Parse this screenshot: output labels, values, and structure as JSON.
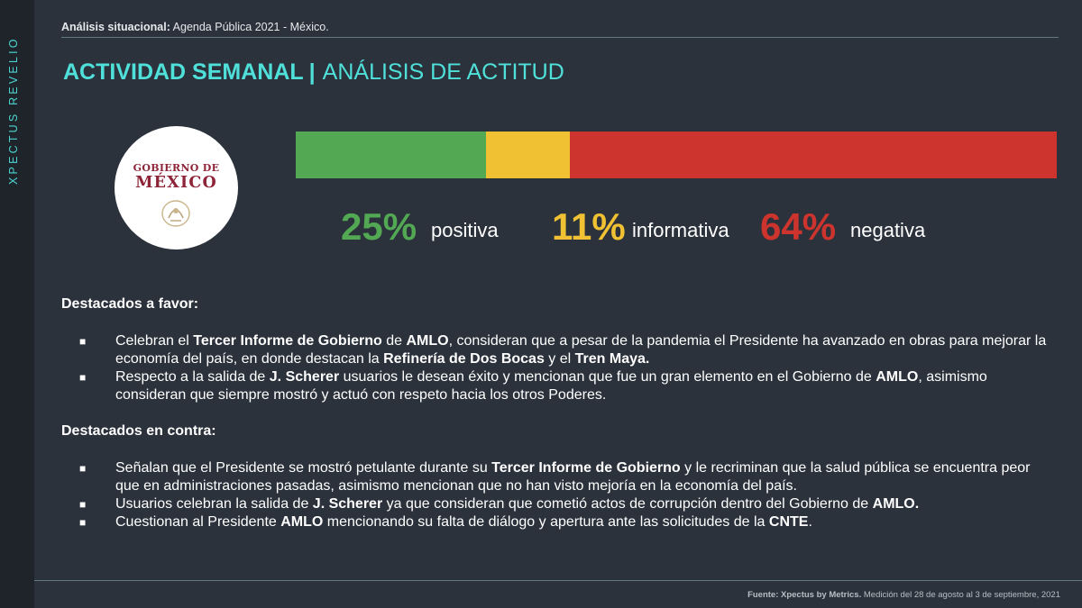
{
  "sidebar": {
    "text": "XPECTUS REVELIO"
  },
  "header": {
    "label_bold": "Análisis situacional:",
    "label_rest": " Agenda Pública 2021 - México."
  },
  "title": {
    "main": "ACTIVIDAD SEMANAL",
    "separator": "|",
    "sub": "ANÁLISIS DE ACTITUD"
  },
  "logo": {
    "line1": "GOBIERNO DE",
    "line2": "MÉXICO"
  },
  "attitude": {
    "segments": [
      {
        "label": "positiva",
        "pct_text": "25%",
        "value": 25,
        "color": "#52a853"
      },
      {
        "label": "informativa",
        "pct_text": "11%",
        "value": 11,
        "color": "#f0c132"
      },
      {
        "label": "negativa",
        "pct_text": "64%",
        "value": 64,
        "color": "#cd342d"
      }
    ]
  },
  "favor": {
    "heading": "Destacados a favor:",
    "items": [
      [
        {
          "t": "Celebran el "
        },
        {
          "t": "Tercer Informe de Gobierno",
          "b": true
        },
        {
          "t": " de "
        },
        {
          "t": "AMLO",
          "b": true
        },
        {
          "t": ", consideran que a pesar de la pandemia el Presidente ha avanzado en obras para mejorar la economía del país, en donde destacan la "
        },
        {
          "t": "Refinería de Dos Bocas",
          "b": true
        },
        {
          "t": " y el "
        },
        {
          "t": "Tren Maya.",
          "b": true
        }
      ],
      [
        {
          "t": "Respecto a la salida de "
        },
        {
          "t": "J. Scherer",
          "b": true
        },
        {
          "t": " usuarios le desean éxito y mencionan que fue un gran elemento en el Gobierno de "
        },
        {
          "t": "AMLO",
          "b": true
        },
        {
          "t": ", asimismo consideran que siempre mostró y actuó con respeto hacia los otros Poderes."
        }
      ]
    ]
  },
  "contra": {
    "heading": "Destacados en contra:",
    "items": [
      [
        {
          "t": "Señalan que el Presidente se mostró petulante durante su "
        },
        {
          "t": "Tercer Informe de Gobierno",
          "b": true
        },
        {
          "t": " y le recriminan que la salud pública se encuentra peor que en administraciones pasadas, asimismo mencionan que no han visto mejoría en la economía del país."
        }
      ],
      [
        {
          "t": "Usuarios celebran la salida de "
        },
        {
          "t": "J. Scherer",
          "b": true
        },
        {
          "t": " ya que consideran que cometió actos de corrupción dentro del Gobierno de "
        },
        {
          "t": "AMLO.",
          "b": true
        }
      ],
      [
        {
          "t": "Cuestionan al Presidente "
        },
        {
          "t": "AMLO",
          "b": true
        },
        {
          "t": " mencionando su falta de diálogo y apertura ante las solicitudes de la "
        },
        {
          "t": "CNTE",
          "b": true
        },
        {
          "t": "."
        }
      ]
    ]
  },
  "bullet_glyph": "■",
  "footer": {
    "bold": "Fuente: Xpectus by Metrics.",
    "rest": " Medición del 28 de agosto al 3 de septiembre, 2021"
  }
}
